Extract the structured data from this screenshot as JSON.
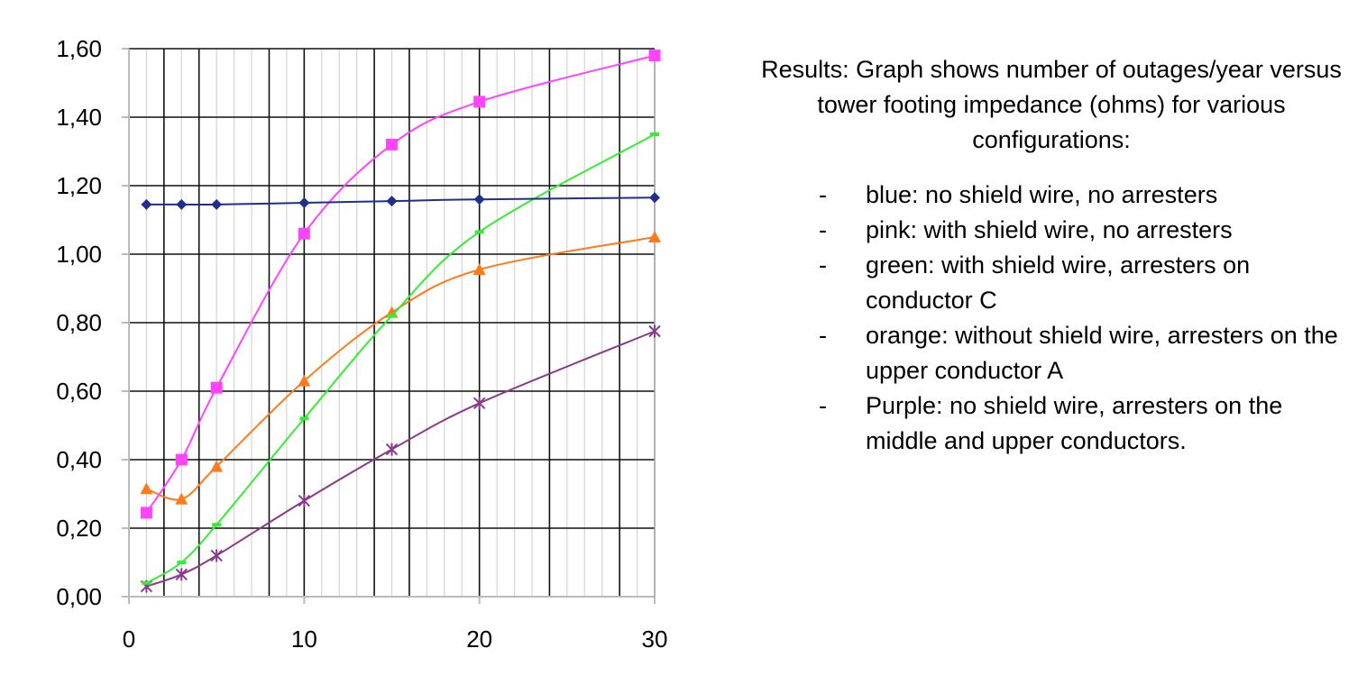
{
  "chart_data": {
    "type": "line",
    "title": "",
    "xlabel": "",
    "ylabel": "",
    "xlim": [
      0,
      30
    ],
    "ylim": [
      0,
      1.6
    ],
    "x_ticks": [
      0,
      10,
      20,
      30
    ],
    "y_ticks": [
      0,
      0.2,
      0.4,
      0.6,
      0.8,
      1.0,
      1.2,
      1.4,
      1.6
    ],
    "x_tick_labels": [
      "0",
      "10",
      "20",
      "30"
    ],
    "y_tick_labels": [
      "0,00",
      "0,20",
      "0,40",
      "0,60",
      "0,80",
      "1,00",
      "1,20",
      "1,40",
      "1,60"
    ],
    "major_grid_x": [
      2,
      4,
      8,
      10,
      14,
      16,
      20,
      24,
      28
    ],
    "minor_grid_x": [
      1,
      3,
      5,
      6,
      7,
      9,
      11,
      12,
      13,
      15,
      17,
      18,
      19,
      21,
      22,
      23,
      25,
      26,
      27,
      29
    ],
    "grid": true,
    "legend": "none",
    "series": [
      {
        "color": "#1f2f8c",
        "marker": "diamond",
        "x": [
          1,
          3,
          5,
          10,
          15,
          20,
          30
        ],
        "y": [
          1.145,
          1.145,
          1.145,
          1.15,
          1.155,
          1.16,
          1.165
        ]
      },
      {
        "color": "#ff44ff",
        "marker": "square",
        "x": [
          1,
          3,
          5,
          10,
          15,
          20,
          30
        ],
        "y": [
          0.245,
          0.4,
          0.61,
          1.06,
          1.32,
          1.445,
          1.58
        ]
      },
      {
        "color": "#33ee33",
        "marker": "dash",
        "x": [
          1,
          3,
          5,
          10,
          15,
          20,
          30
        ],
        "y": [
          0.04,
          0.1,
          0.21,
          0.52,
          0.82,
          1.065,
          1.35
        ]
      },
      {
        "color": "#ff7a1a",
        "marker": "triangle",
        "x": [
          1,
          3,
          5,
          10,
          15,
          20,
          30
        ],
        "y": [
          0.315,
          0.285,
          0.38,
          0.63,
          0.83,
          0.955,
          1.05
        ]
      },
      {
        "color": "#8a3a8a",
        "marker": "star",
        "x": [
          1,
          3,
          5,
          10,
          15,
          20,
          30
        ],
        "y": [
          0.03,
          0.065,
          0.12,
          0.28,
          0.43,
          0.565,
          0.775
        ]
      }
    ]
  },
  "description": {
    "intro": "Results: Graph shows number of outages/year versus tower footing impedance (ohms) for various configurations:",
    "items": [
      "blue: no shield wire, no arresters",
      "pink: with shield wire, no arresters",
      "green: with shield wire, arresters on conductor C",
      "orange: without shield wire, arresters on the upper conductor A",
      "Purple: no shield wire, arresters on the middle and upper conductors."
    ],
    "bullet": "-"
  }
}
